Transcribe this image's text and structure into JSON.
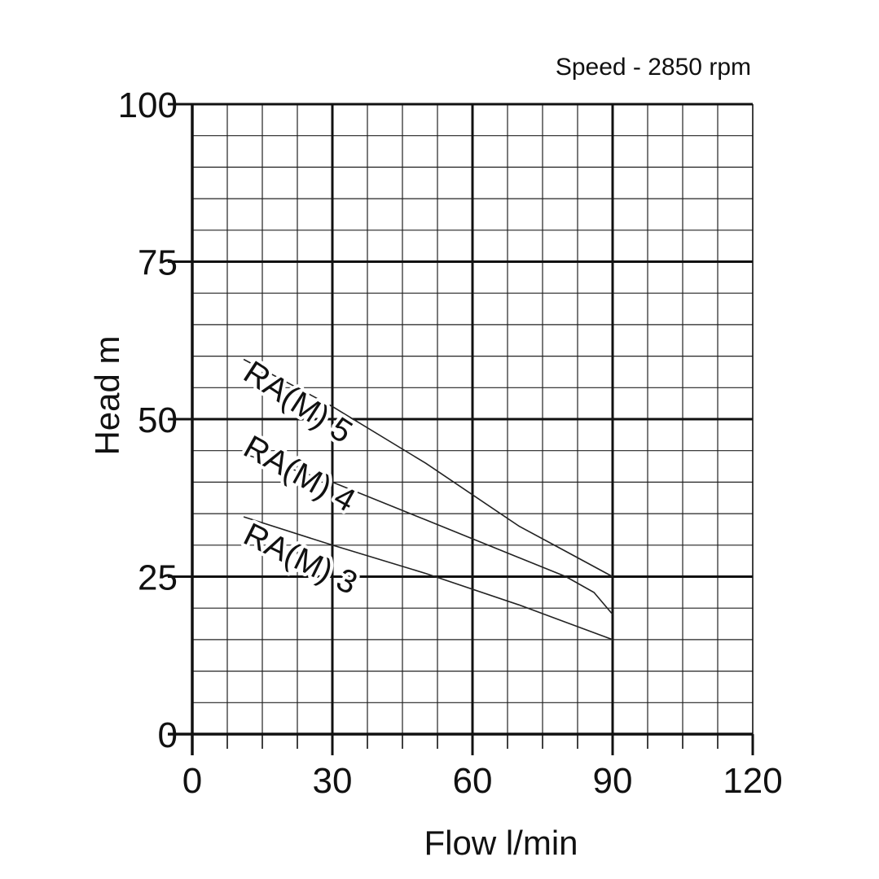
{
  "chart_data": {
    "type": "line",
    "subtitle": "Speed - 2850 rpm",
    "xlabel": "Flow l/min",
    "ylabel": "Head m",
    "xlim": [
      0,
      120
    ],
    "ylim": [
      0,
      100
    ],
    "x_ticks": [
      0,
      30,
      60,
      90,
      120
    ],
    "y_ticks": [
      0,
      25,
      50,
      75,
      100
    ],
    "x_tick_labels": [
      "0",
      "30",
      "60",
      "90",
      "120"
    ],
    "y_tick_labels": [
      "0",
      "25",
      "50",
      "75",
      "100"
    ],
    "grid": true,
    "series": [
      {
        "name": "RA(M) 5",
        "x": [
          11,
          30,
          50,
          70,
          80,
          90
        ],
        "y": [
          59.5,
          52,
          43,
          33,
          29,
          25
        ]
      },
      {
        "name": "RA(M) 4",
        "x": [
          11,
          30,
          50,
          70,
          80,
          86,
          90
        ],
        "y": [
          44.5,
          40,
          34,
          28,
          25,
          22.5,
          19
        ]
      },
      {
        "name": "RA(M) 3",
        "x": [
          11,
          30,
          50,
          70,
          90
        ],
        "y": [
          34.5,
          30,
          25.5,
          20.5,
          15
        ]
      }
    ]
  }
}
